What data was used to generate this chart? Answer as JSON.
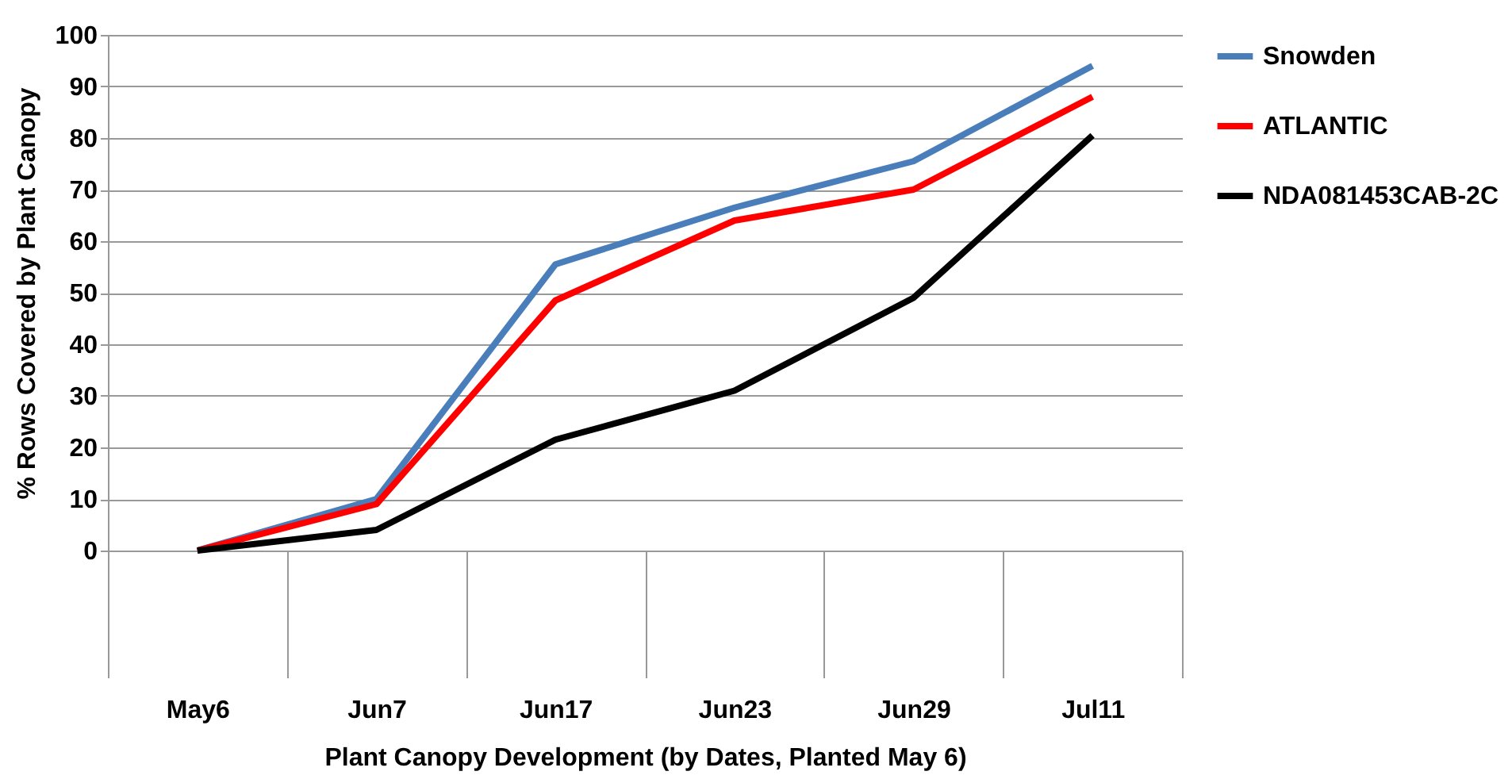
{
  "chart_data": {
    "type": "line",
    "xlabel": "Plant Canopy Development (by Dates, Planted May 6)",
    "ylabel": "% Rows Covered by Plant Canopy",
    "categories": [
      "May6",
      "Jun7",
      "Jun17",
      "Jun23",
      "Jun29",
      "Jul11"
    ],
    "series": [
      {
        "name": "Snowden",
        "color": "#4a7ebb",
        "values": [
          0,
          10,
          55.5,
          66.5,
          75.5,
          94
        ]
      },
      {
        "name": "ATLANTIC",
        "color": "#ff0000",
        "values": [
          0,
          9,
          48.5,
          64,
          70,
          88
        ]
      },
      {
        "name": "NDA081453CAB-2C",
        "color": "#000000",
        "values": [
          0,
          4,
          21.5,
          31,
          49,
          80.5
        ]
      }
    ],
    "ylim": [
      0,
      100
    ],
    "yticks": [
      0,
      10,
      20,
      30,
      40,
      50,
      60,
      70,
      80,
      90,
      100
    ],
    "grid": "y",
    "legend": "right",
    "marker": "none",
    "line_style": "solid"
  }
}
